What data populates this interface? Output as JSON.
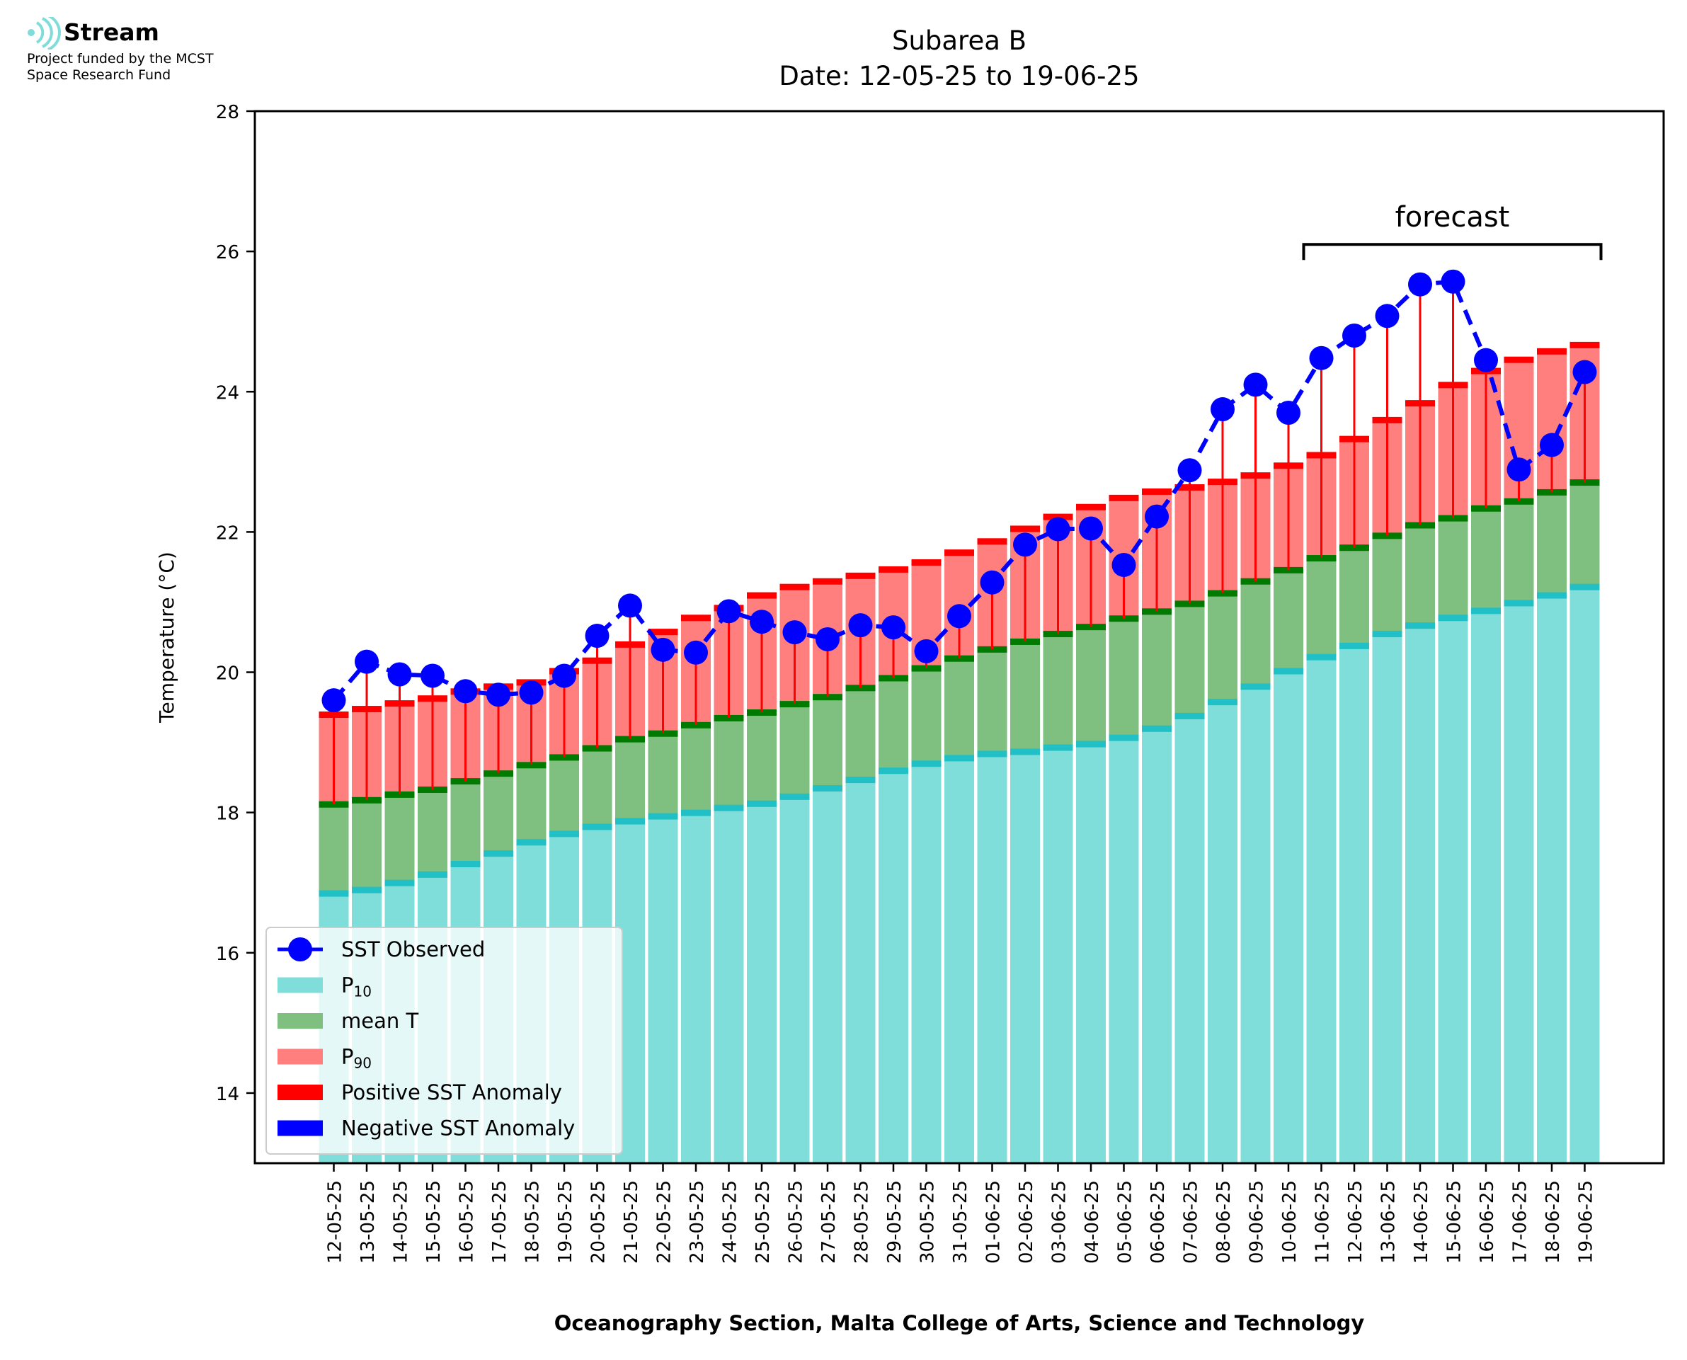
{
  "logo": {
    "name": "Stream",
    "funding_line1": "Project funded by the MCST",
    "funding_line2": "Space Research Fund",
    "color": "#7fdcdb"
  },
  "chart_data": {
    "type": "bar",
    "title": "Subarea B",
    "subtitle": "Date: 12-05-25 to 19-06-25",
    "ylabel": "Temperature (°C)",
    "xlabel": "Oceanography Section, Malta College of Arts, Science and Technology",
    "ylim": [
      13,
      28
    ],
    "yticks": [
      14,
      16,
      18,
      20,
      22,
      24,
      26,
      28
    ],
    "legend_position": "lower-left",
    "forecast_label": "forecast",
    "forecast_range": [
      "11-06-25",
      "19-06-25"
    ],
    "categories": [
      "12-05-25",
      "13-05-25",
      "14-05-25",
      "15-05-25",
      "16-05-25",
      "17-05-25",
      "18-05-25",
      "19-05-25",
      "20-05-25",
      "21-05-25",
      "22-05-25",
      "23-05-25",
      "24-05-25",
      "25-05-25",
      "26-05-25",
      "27-05-25",
      "28-05-25",
      "29-05-25",
      "30-05-25",
      "31-05-25",
      "01-06-25",
      "02-06-25",
      "03-06-25",
      "04-06-25",
      "05-06-25",
      "06-06-25",
      "07-06-25",
      "08-06-25",
      "09-06-25",
      "10-06-25",
      "11-06-25",
      "12-06-25",
      "13-06-25",
      "14-06-25",
      "15-06-25",
      "16-06-25",
      "17-06-25",
      "18-06-25",
      "19-06-25"
    ],
    "series": [
      {
        "name": "SST Observed",
        "kind": "line",
        "color": "#0000ff",
        "values": [
          19.6,
          20.15,
          19.97,
          19.95,
          19.73,
          19.68,
          19.71,
          19.95,
          20.52,
          20.95,
          20.32,
          20.28,
          20.87,
          20.72,
          20.57,
          20.47,
          20.67,
          20.64,
          20.3,
          20.8,
          21.28,
          21.82,
          22.04,
          22.05,
          21.53,
          22.22,
          22.88,
          23.75,
          24.1,
          23.7,
          24.48,
          24.8,
          25.08,
          25.53,
          25.57,
          24.45,
          22.89,
          23.24,
          24.28
        ]
      },
      {
        "name": "P10",
        "kind": "bar",
        "color": "#80deda",
        "values": [
          16.85,
          16.9,
          17.0,
          17.12,
          17.27,
          17.42,
          17.58,
          17.7,
          17.8,
          17.88,
          17.95,
          18.0,
          18.07,
          18.13,
          18.23,
          18.35,
          18.47,
          18.6,
          18.7,
          18.78,
          18.84,
          18.87,
          18.93,
          18.98,
          19.07,
          19.2,
          19.38,
          19.58,
          19.8,
          20.02,
          20.22,
          20.38,
          20.55,
          20.67,
          20.78,
          20.88,
          20.99,
          21.1,
          21.22
        ]
      },
      {
        "name": "mean T",
        "kind": "bar",
        "color": "#7fbf7f",
        "values": [
          18.12,
          18.18,
          18.26,
          18.33,
          18.45,
          18.56,
          18.68,
          18.79,
          18.92,
          19.05,
          19.13,
          19.25,
          19.35,
          19.43,
          19.55,
          19.65,
          19.78,
          19.92,
          20.06,
          20.2,
          20.33,
          20.44,
          20.55,
          20.65,
          20.77,
          20.87,
          20.98,
          21.13,
          21.3,
          21.46,
          21.63,
          21.78,
          21.95,
          22.1,
          22.2,
          22.34,
          22.44,
          22.57,
          22.71
        ]
      },
      {
        "name": "P90",
        "kind": "bar",
        "color": "#ff7f7f",
        "values": [
          19.4,
          19.48,
          19.56,
          19.63,
          19.73,
          19.8,
          19.86,
          20.02,
          20.17,
          20.4,
          20.58,
          20.78,
          20.92,
          21.1,
          21.22,
          21.3,
          21.38,
          21.47,
          21.57,
          21.71,
          21.87,
          22.05,
          22.22,
          22.36,
          22.49,
          22.58,
          22.64,
          22.72,
          22.81,
          22.95,
          23.1,
          23.33,
          23.6,
          23.84,
          24.1,
          24.3,
          24.46,
          24.58,
          24.67
        ]
      },
      {
        "name": "Positive SST Anomaly",
        "kind": "marker",
        "color": "#ff0000"
      },
      {
        "name": "Negative SST Anomaly",
        "kind": "marker",
        "color": "#0000ff"
      }
    ],
    "colors": {
      "p10_edge": "#20c0c6",
      "mean_edge": "#007a00",
      "p90_edge": "#ff0000"
    }
  }
}
